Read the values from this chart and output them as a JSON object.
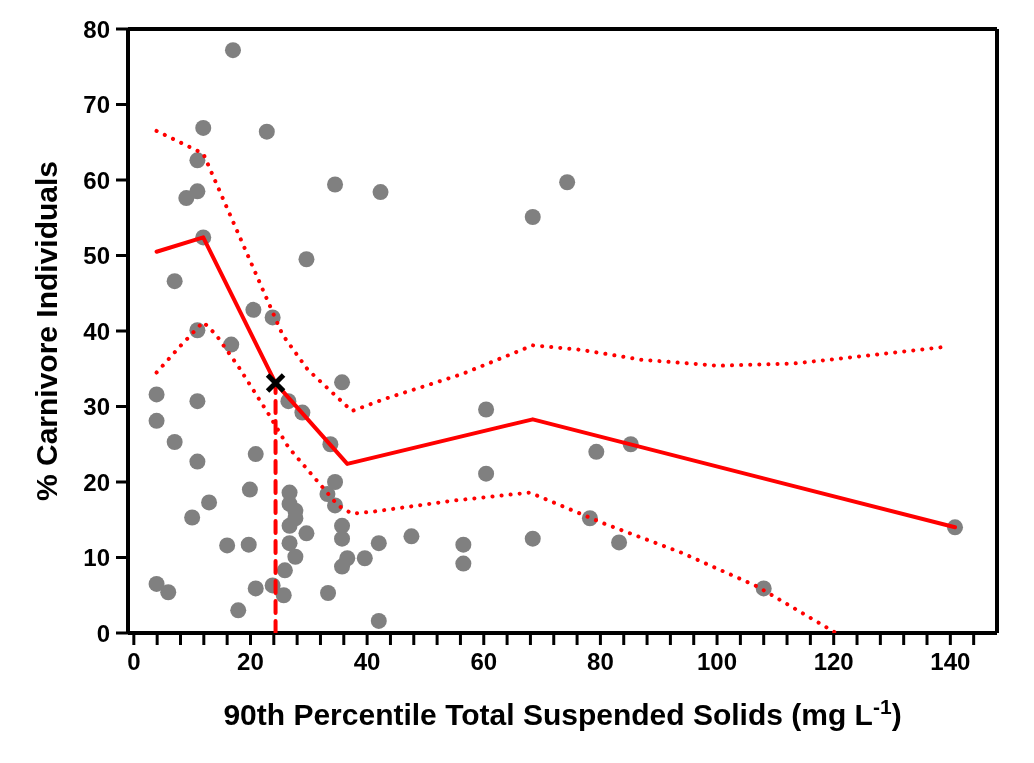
{
  "chart_data": {
    "type": "scatter",
    "xlabel": "90th Percentile Total Suspended Solids (mg L$^{-1}$)",
    "ylabel": "% Carnivore Individuals",
    "xlim": [
      -1,
      148
    ],
    "ylim": [
      0,
      80
    ],
    "xticks": [
      0,
      {
        "value": 4,
        "label": null
      },
      {
        "value": 8,
        "label": null
      },
      {
        "value": 12,
        "label": null
      },
      {
        "value": 16,
        "label": null
      },
      20,
      {
        "value": 24,
        "label": null
      },
      {
        "value": 28,
        "label": null
      },
      {
        "value": 32,
        "label": null
      },
      {
        "value": 36,
        "label": null
      },
      40,
      {
        "value": 44,
        "label": null
      },
      {
        "value": 48,
        "label": null
      },
      {
        "value": 52,
        "label": null
      },
      {
        "value": 56,
        "label": null
      },
      60,
      {
        "value": 64,
        "label": null
      },
      {
        "value": 68,
        "label": null
      },
      {
        "value": 72,
        "label": null
      },
      {
        "value": 76,
        "label": null
      },
      80,
      {
        "value": 84,
        "label": null
      },
      {
        "value": 88,
        "label": null
      },
      {
        "value": 92,
        "label": null
      },
      {
        "value": 96,
        "label": null
      },
      100,
      {
        "value": 104,
        "label": null
      },
      {
        "value": 108,
        "label": null
      },
      {
        "value": 112,
        "label": null
      },
      {
        "value": 116,
        "label": null
      },
      120,
      {
        "value": 124,
        "label": null
      },
      {
        "value": 128,
        "label": null
      },
      {
        "value": 132,
        "label": null
      },
      {
        "value": 136,
        "label": null
      },
      140,
      {
        "value": 144,
        "label": null
      }
    ],
    "yticks": [
      0,
      10,
      20,
      30,
      40,
      50,
      60,
      70,
      80
    ],
    "grid": false,
    "legend": false,
    "series": [
      {
        "type": "scatter",
        "marker": "circle",
        "color": "#808080",
        "x": [
          17,
          11.9,
          22.8,
          10.9,
          10.9,
          9.0,
          34.5,
          42.3,
          29.6,
          11.9,
          7.0,
          20.5,
          23.8,
          16.7,
          10.9,
          3.9,
          10.9,
          3.9,
          7.0,
          10.9,
          12.9,
          10.0,
          20.9,
          19.9,
          16.0,
          19.7,
          17.9,
          3.9,
          5.9,
          20.9,
          23.8,
          25.7,
          25.9,
          27.7,
          26.7,
          26.7,
          26.7,
          27.7,
          26.7,
          27.7,
          29.6,
          26.5,
          28.9,
          33.7,
          35.7,
          34.5,
          33.2,
          34.5,
          35.7,
          35.7,
          36.6,
          35.7,
          39.6,
          42.0,
          33.3,
          42.0,
          74.3,
          68.4,
          60.4,
          60.4,
          79.3,
          85.2,
          78.2,
          83.2,
          68.4,
          56.5,
          56.5,
          47.6,
          108,
          140.8
        ],
        "values": [
          77.2,
          66.9,
          66.4,
          62.6,
          58.5,
          57.6,
          59.4,
          58.4,
          49.5,
          52.4,
          46.6,
          42.8,
          41.8,
          38.2,
          40.1,
          31.6,
          30.7,
          28.1,
          25.3,
          22.7,
          17.3,
          15.3,
          23.7,
          19.0,
          11.6,
          11.7,
          3.0,
          6.5,
          5.4,
          5.9,
          6.3,
          5.0,
          8.3,
          10.1,
          11.9,
          18.6,
          17.1,
          16.2,
          14.2,
          15.2,
          13.2,
          30.7,
          29.2,
          25.0,
          33.2,
          20.0,
          18.4,
          16.9,
          14.2,
          12.5,
          9.9,
          8.8,
          9.9,
          11.9,
          5.3,
          1.6,
          59.7,
          55.1,
          29.6,
          21.1,
          24.0,
          25.0,
          15.2,
          12.0,
          12.5,
          11.7,
          9.2,
          12.8,
          5.9,
          14.0
        ]
      },
      {
        "type": "line",
        "color": "#ff0000",
        "line_style": "solid",
        "marker": "none",
        "x": [
          3.9,
          11.9,
          24.3,
          36.6,
          68.4,
          140.8
        ],
        "values": [
          50.5,
          52.4,
          33.1,
          22.4,
          28.3,
          14.0
        ]
      },
      {
        "type": "line",
        "color": "#ff0000",
        "line_style": "dotted",
        "marker": "none",
        "x": [
          3.9,
          11.9,
          25.5,
          29.8,
          37.4,
          43,
          56.3,
          68.4,
          76.7,
          87,
          100.2,
          113.3,
          126.4,
          139.1
        ],
        "values": [
          66.5,
          63.5,
          39.5,
          34.9,
          29.4,
          31,
          34.3,
          38.1,
          37.5,
          36.2,
          35.4,
          35.7,
          36.8,
          37.9
        ]
      },
      {
        "type": "line",
        "color": "#ff0000",
        "line_style": "dotted",
        "marker": "none",
        "x": [
          3.9,
          8.2,
          11.9,
          14.1,
          18,
          23.1,
          26.5,
          31.6,
          35,
          37.4,
          41.3,
          54.4,
          67.9,
          80.6,
          93.7,
          106.8,
          120.4
        ],
        "values": [
          34.5,
          38.2,
          41.2,
          39.5,
          35.2,
          29,
          24.6,
          20,
          16.9,
          15.8,
          16.1,
          17.5,
          18.6,
          14.5,
          10.7,
          6.2,
          0
        ]
      },
      {
        "type": "line",
        "color": "#ff0000",
        "line_style": "dashed",
        "marker": "none",
        "x": [
          24.3,
          24.3
        ],
        "values": [
          0,
          33.1
        ]
      },
      {
        "type": "scatter",
        "marker": "cross",
        "color": "#000000",
        "x": [
          24.3
        ],
        "values": [
          33.1
        ]
      }
    ]
  }
}
